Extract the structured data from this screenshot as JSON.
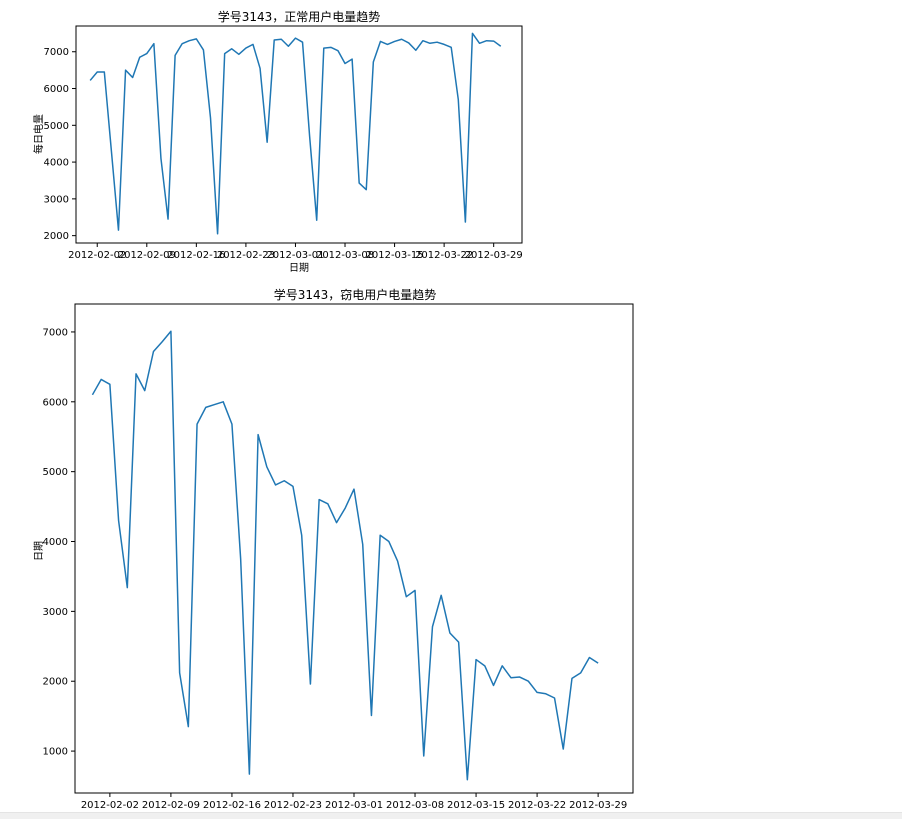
{
  "chart_data": [
    {
      "type": "line",
      "title": "学号3143，正常用户电量趋势",
      "xlabel": "日期",
      "ylabel": "每日电量",
      "ylim": [
        1800,
        7700
      ],
      "yticks": [
        2000,
        3000,
        4000,
        5000,
        6000,
        7000
      ],
      "x_range": [
        "2012-01-30",
        "2012-04-02"
      ],
      "xticks": [
        "2012-02-02",
        "2012-02-09",
        "2012-02-16",
        "2012-02-23",
        "2012-03-01",
        "2012-03-08",
        "2012-03-15",
        "2012-03-22",
        "2012-03-29"
      ],
      "color": "#1f77b4",
      "grid": false,
      "series": [
        {
          "start_date": "2012-02-01",
          "values": [
            6220,
            6450,
            6450,
            4300,
            2150,
            6500,
            6300,
            6850,
            6950,
            7220,
            4100,
            2450,
            6900,
            7220,
            7300,
            7350,
            7050,
            5200,
            2050,
            6950,
            7080,
            6930,
            7100,
            7200,
            6550,
            4540,
            7320,
            7340,
            7150,
            7370,
            7260,
            4700,
            2420,
            7100,
            7120,
            7030,
            6680,
            6800,
            3430,
            3250,
            6720,
            7280,
            7200,
            7280,
            7340,
            7240,
            7040,
            7300,
            7230,
            7260,
            7200,
            7120,
            5700,
            2370,
            7500,
            7230,
            7300,
            7290,
            7150
          ]
        }
      ]
    },
    {
      "type": "line",
      "title": "学号3143，窃电用户电量趋势",
      "xlabel": "",
      "ylabel": "日期",
      "ylim": [
        400,
        7400
      ],
      "yticks": [
        1000,
        2000,
        3000,
        4000,
        5000,
        6000,
        7000
      ],
      "x_range": [
        "2012-01-29",
        "2012-04-02"
      ],
      "xticks": [
        "2012-02-02",
        "2012-02-09",
        "2012-02-16",
        "2012-02-23",
        "2012-03-01",
        "2012-03-08",
        "2012-03-15",
        "2012-03-22",
        "2012-03-29"
      ],
      "color": "#1f77b4",
      "grid": false,
      "series": [
        {
          "start_date": "2012-01-31",
          "values": [
            6100,
            6320,
            6250,
            4300,
            3340,
            6400,
            6160,
            6720,
            6860,
            7010,
            2120,
            1350,
            5680,
            5920,
            5960,
            6000,
            5680,
            3750,
            670,
            5530,
            5070,
            4810,
            4870,
            4790,
            4090,
            1960,
            4600,
            4540,
            4270,
            4480,
            4750,
            3960,
            1510,
            4090,
            4000,
            3720,
            3210,
            3300,
            930,
            2780,
            3230,
            2690,
            2560,
            590,
            2310,
            2220,
            1940,
            2220,
            2050,
            2060,
            2000,
            1840,
            1820,
            1760,
            1030,
            2040,
            2120,
            2340,
            2260
          ]
        }
      ]
    }
  ]
}
